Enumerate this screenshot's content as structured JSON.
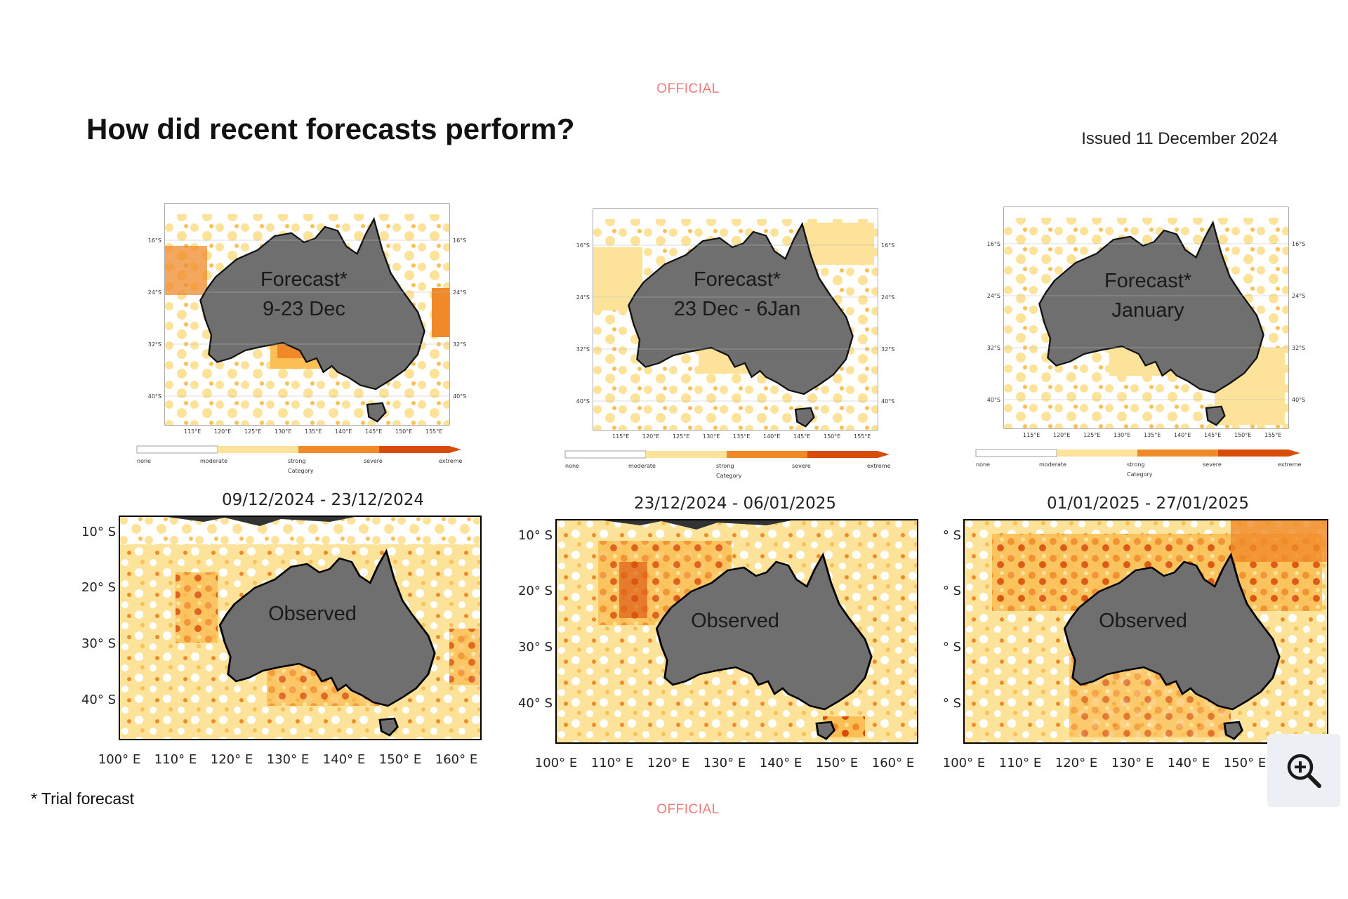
{
  "header": {
    "official_top": "OFFICIAL",
    "title": "How did recent forecasts perform?",
    "issued": "Issued 11 December 2024"
  },
  "forecast_panels": [
    {
      "label_line1": "Forecast*",
      "label_line2": "9-23 Dec"
    },
    {
      "label_line1": "Forecast*",
      "label_line2": "23 Dec - 6Jan"
    },
    {
      "label_line1": "Forecast*",
      "label_line2": "January"
    }
  ],
  "forecast_axes": {
    "lat_ticks": [
      "16°S",
      "24°S",
      "32°S",
      "40°S"
    ],
    "lon_ticks": [
      "115°E",
      "120°E",
      "125°E",
      "130°E",
      "135°E",
      "140°E",
      "145°E",
      "150°E",
      "155°E"
    ]
  },
  "legend": {
    "categories": [
      "none",
      "moderate",
      "strong",
      "severe",
      "extreme"
    ],
    "title": "Category",
    "colors": [
      "#ffffff",
      "#fde39a",
      "#fbbf55",
      "#f08a28",
      "#d94c08"
    ]
  },
  "observed_panels": [
    {
      "period": "09/12/2024 - 23/12/2024",
      "label": "Observed"
    },
    {
      "period": "23/12/2024 - 06/01/2025",
      "label": "Observed"
    },
    {
      "period": "01/01/2025 - 27/01/2025",
      "label": "Observed"
    }
  ],
  "observed_axes": {
    "lat_ticks": [
      "10° S",
      "20° S",
      "30° S",
      "40° S"
    ],
    "lon_ticks": [
      "100° E",
      "110° E",
      "120° E",
      "130° E",
      "140° E",
      "150° E",
      "160° E"
    ]
  },
  "colors": {
    "land": "#6f6f6f",
    "moderate": "#fde39a",
    "strong": "#fbbf55",
    "severe": "#f08a28",
    "extreme": "#d94c08"
  },
  "footer": {
    "footnote": "* Trial forecast",
    "official_bottom": "OFFICIAL"
  },
  "zoom": {
    "icon": "zoom-in-icon"
  }
}
